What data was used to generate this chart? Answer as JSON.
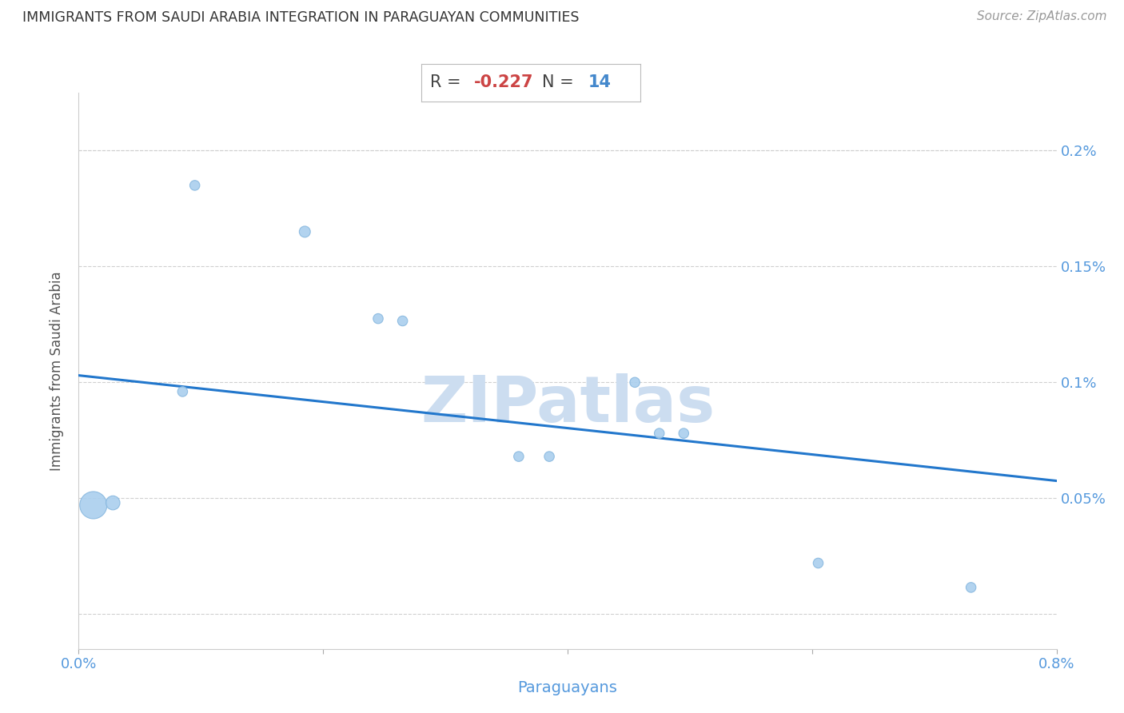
{
  "title": "IMMIGRANTS FROM SAUDI ARABIA INTEGRATION IN PARAGUAYAN COMMUNITIES",
  "source": "Source: ZipAtlas.com",
  "xlabel": "Paraguayans",
  "ylabel": "Immigrants from Saudi Arabia",
  "xlim": [
    0.0,
    0.008
  ],
  "ylim": [
    -0.00015,
    0.00225
  ],
  "xticks": [
    0.0,
    0.002,
    0.004,
    0.006,
    0.008
  ],
  "xtick_labels": [
    "0.0%",
    "",
    "",
    "",
    "0.8%"
  ],
  "ytick_positions": [
    0.0,
    0.0005,
    0.001,
    0.0015,
    0.002
  ],
  "ytick_labels_right": [
    "",
    "0.05%",
    "0.1%",
    "0.15%",
    "0.2%"
  ],
  "R_value": "-0.227",
  "N_value": "14",
  "scatter_x": [
    0.00012,
    0.00028,
    0.00085,
    0.00095,
    0.00185,
    0.00245,
    0.00265,
    0.0036,
    0.00385,
    0.00455,
    0.00475,
    0.00495,
    0.00605,
    0.0073
  ],
  "scatter_y": [
    0.00047,
    0.00048,
    0.00096,
    0.00185,
    0.00165,
    0.001275,
    0.001265,
    0.00068,
    0.00068,
    0.001,
    0.00078,
    0.00078,
    0.00022,
    0.000115
  ],
  "scatter_sizes": [
    600,
    160,
    80,
    80,
    100,
    80,
    80,
    80,
    80,
    80,
    80,
    80,
    80,
    80
  ],
  "scatter_color": "#aacfee",
  "scatter_edgecolor": "#88b8df",
  "line_color": "#2277cc",
  "line_start_x": 0.0,
  "line_start_y": 0.00103,
  "line_end_x": 0.008,
  "line_end_y": 0.000575,
  "grid_color": "#d0d0d0",
  "title_color": "#333333",
  "axis_color": "#5599dd",
  "watermark": "ZIPatlas",
  "watermark_color": "#ccddf0",
  "background_color": "#ffffff"
}
